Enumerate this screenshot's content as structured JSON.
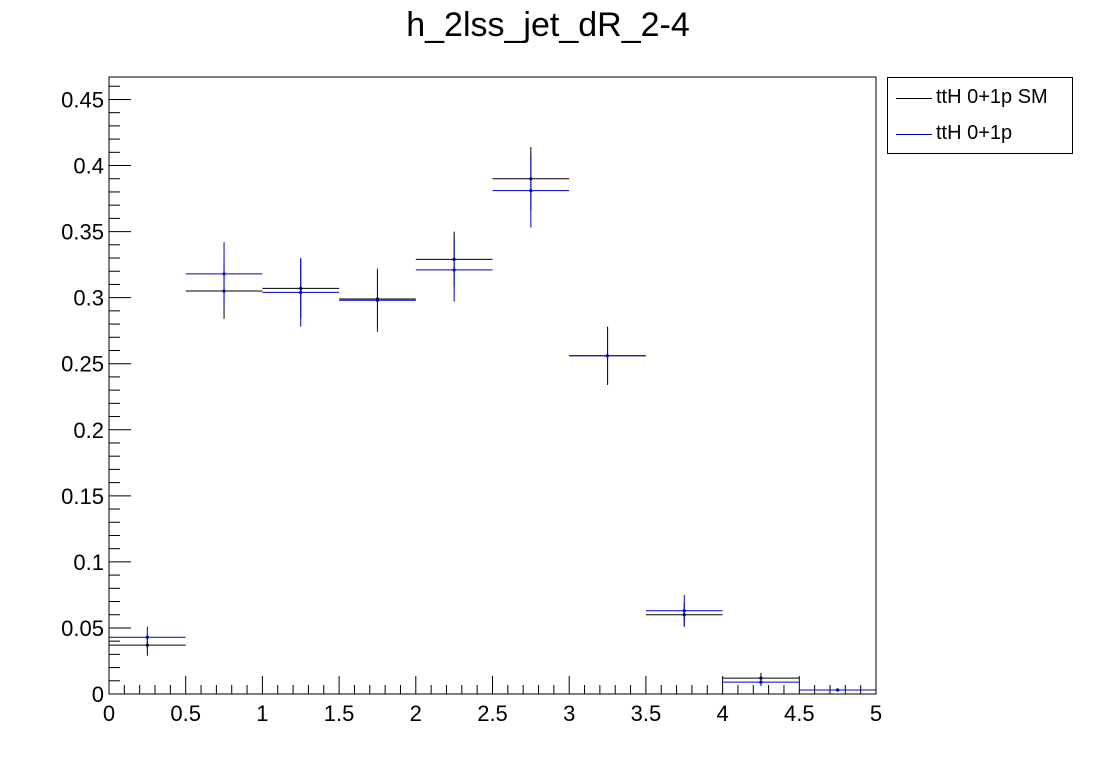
{
  "title": "h_2lss_jet_dR_2-4",
  "legend": [
    {
      "label": "ttH 0+1p SM",
      "color": "#000000"
    },
    {
      "label": "ttH 0+1p",
      "color": "#0000cc"
    }
  ],
  "chart_data": {
    "type": "scatter",
    "title": "h_2lss_jet_dR_2-4",
    "xlabel": "",
    "ylabel": "",
    "xlim": [
      0,
      5
    ],
    "ylim": [
      0,
      0.467
    ],
    "x_ticks": [
      0,
      0.5,
      1,
      1.5,
      2,
      2.5,
      3,
      3.5,
      4,
      4.5,
      5
    ],
    "x_tick_labels": [
      "0",
      "0.5",
      "1",
      "1.5",
      "2",
      "2.5",
      "3",
      "3.5",
      "4",
      "4.5",
      "5"
    ],
    "y_ticks": [
      0,
      0.05,
      0.1,
      0.15,
      0.2,
      0.25,
      0.3,
      0.35,
      0.4,
      0.45
    ],
    "y_tick_labels": [
      "0",
      "0.05",
      "0.1",
      "0.15",
      "0.2",
      "0.25",
      "0.3",
      "0.35",
      "0.4",
      "0.45"
    ],
    "bin_edges": [
      0,
      0.5,
      1,
      1.5,
      2,
      2.5,
      3,
      3.5,
      4,
      4.5,
      5
    ],
    "legend_position": "outside-top-right",
    "series": [
      {
        "name": "ttH 0+1p SM",
        "color": "#000000",
        "x": [
          0.25,
          0.75,
          1.25,
          1.75,
          2.25,
          2.75,
          3.25,
          3.75,
          4.25,
          4.75
        ],
        "values": [
          0.037,
          0.305,
          0.307,
          0.299,
          0.329,
          0.39,
          0.256,
          0.06,
          0.012,
          0.003
        ],
        "errors": [
          0.008,
          0.021,
          0.022,
          0.022,
          0.021,
          0.024,
          0.022,
          0.009,
          0.004,
          0.001
        ]
      },
      {
        "name": "ttH 0+1p",
        "color": "#0000cc",
        "x": [
          0.25,
          0.75,
          1.25,
          1.75,
          2.25,
          2.75,
          3.25,
          3.75,
          4.25,
          4.75
        ],
        "values": [
          0.043,
          0.318,
          0.304,
          0.298,
          0.321,
          0.381,
          0.256,
          0.063,
          0.009,
          0.003
        ],
        "errors": [
          0.008,
          0.024,
          0.026,
          0.024,
          0.024,
          0.028,
          0.022,
          0.012,
          0.003,
          0.001
        ]
      }
    ]
  }
}
